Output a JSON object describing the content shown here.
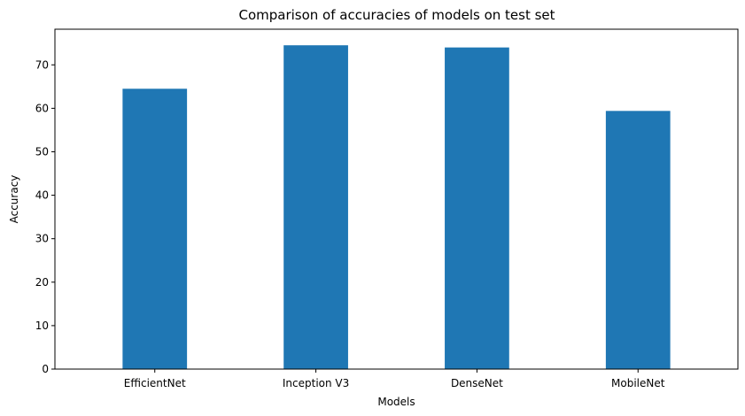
{
  "chart_data": {
    "type": "bar",
    "title": "Comparison of accuracies of models on test set",
    "xlabel": "Models",
    "ylabel": "Accuracy",
    "categories": [
      "EfficientNet",
      "Inception V3",
      "DenseNet",
      "MobileNet"
    ],
    "values": [
      64.5,
      74.5,
      74.0,
      59.4
    ],
    "ylim": [
      0,
      78.2
    ],
    "yticks": [
      0,
      10,
      20,
      30,
      40,
      50,
      60,
      70
    ],
    "bar_color": "#1f77b4",
    "grid": false,
    "legend": "none"
  }
}
